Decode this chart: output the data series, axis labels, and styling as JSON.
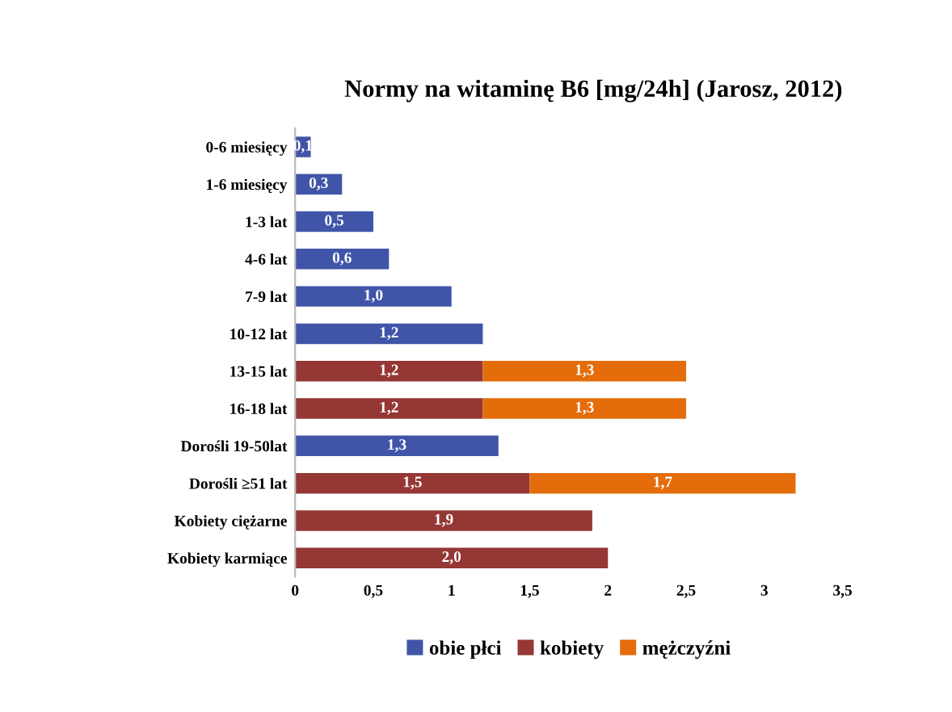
{
  "chart_data": {
    "type": "bar",
    "orientation": "horizontal",
    "stacked": true,
    "title": "Normy na witaminę B6 [mg/24h] (Jarosz, 2012)",
    "categories": [
      "0-6 miesięcy",
      "1-6 miesięcy",
      "1-3 lat",
      "4-6 lat",
      "7-9 lat",
      "10-12 lat",
      "13-15 lat",
      "16-18 lat",
      "Dorośli 19-50lat",
      "Dorośli ≥51 lat",
      "Kobiety ciężarne",
      "Kobiety karmiące"
    ],
    "series": [
      {
        "name": "obie płci",
        "color": "#4055a8",
        "values": [
          0.1,
          0.3,
          0.5,
          0.6,
          1.0,
          1.2,
          null,
          null,
          1.3,
          null,
          null,
          null
        ],
        "value_labels": [
          "0,1",
          "0,3",
          "0,5",
          "0,6",
          "1,0",
          "1,2",
          null,
          null,
          "1,3",
          null,
          null,
          null
        ]
      },
      {
        "name": "kobiety",
        "color": "#953735",
        "values": [
          null,
          null,
          null,
          null,
          null,
          null,
          1.2,
          1.2,
          null,
          1.5,
          1.9,
          2.0
        ],
        "value_labels": [
          null,
          null,
          null,
          null,
          null,
          null,
          "1,2",
          "1,2",
          null,
          "1,5",
          "1,9",
          "2,0"
        ]
      },
      {
        "name": "mężczyźni",
        "color": "#e46c0a",
        "values": [
          null,
          null,
          null,
          null,
          null,
          null,
          1.3,
          1.3,
          null,
          1.7,
          null,
          null
        ],
        "value_labels": [
          null,
          null,
          null,
          null,
          null,
          null,
          "1,3",
          "1,3",
          null,
          "1,7",
          null,
          null
        ]
      }
    ],
    "xlim": [
      0,
      3.5
    ],
    "xticks": [
      0,
      {
        "value": 0.5,
        "label": "0,5"
      },
      1,
      {
        "value": 1.5,
        "label": "1,5"
      },
      2,
      {
        "value": 2.5,
        "label": "2,5"
      },
      3,
      {
        "value": 3.5,
        "label": "3,5"
      }
    ],
    "grid": false,
    "legend": "bottom"
  }
}
